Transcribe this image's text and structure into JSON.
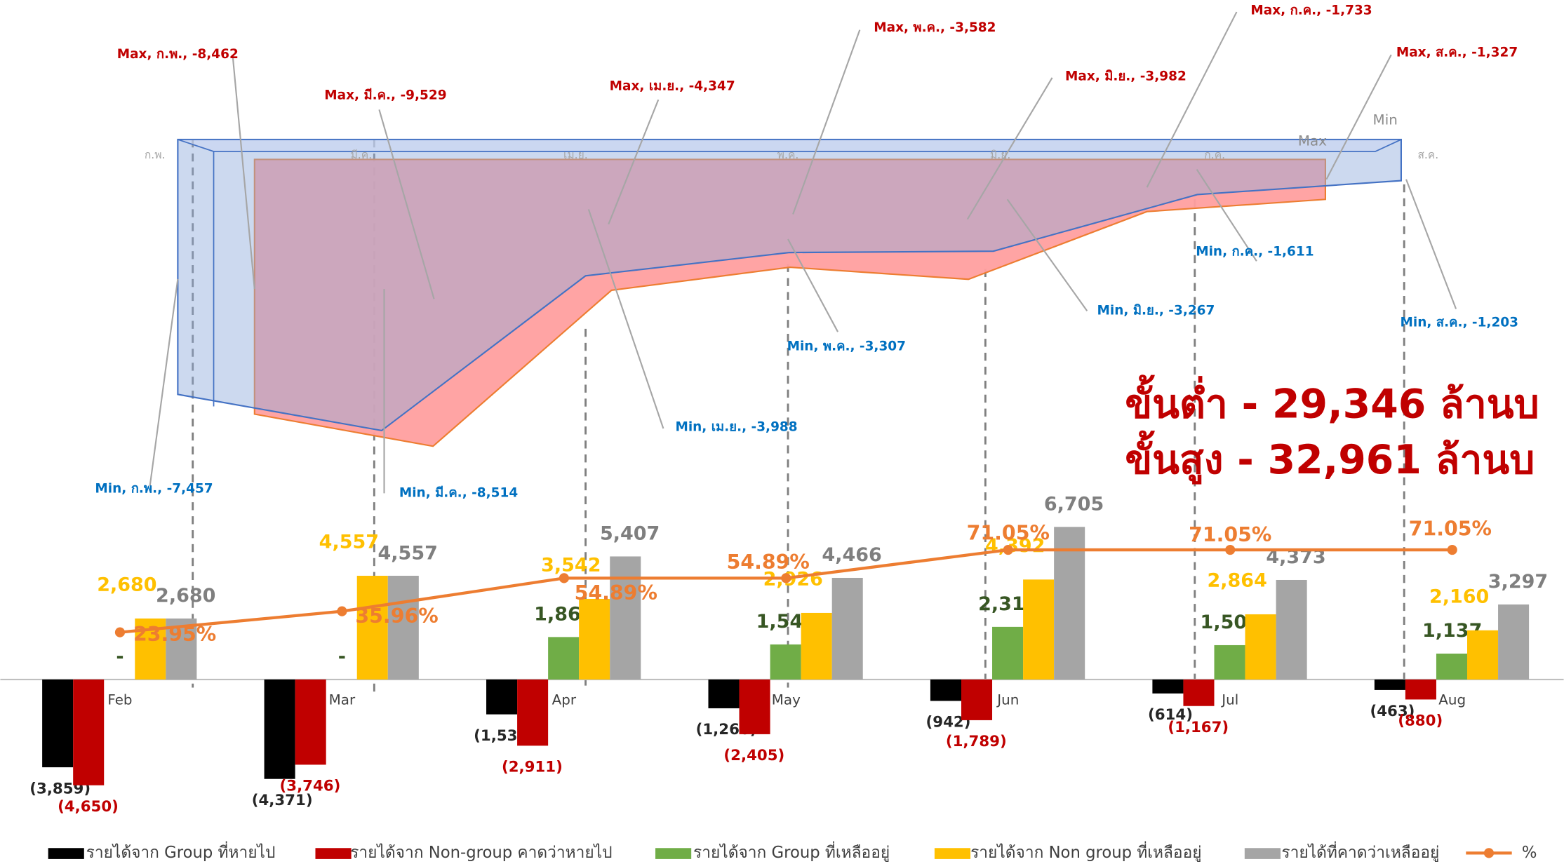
{
  "chart_data": [
    {
      "type": "area",
      "categories": [
        "ก.พ.",
        "มี.ค.",
        "เม.ย.",
        "พ.ค.",
        "มิ.ย.",
        "ก.ค.",
        "ส.ค."
      ],
      "ylim": [
        -10000,
        0
      ],
      "series": [
        {
          "name": "Max",
          "color": "#ff9f9f",
          "label_color": "#c00000",
          "values": [
            -8462,
            -9529,
            -4347,
            -3582,
            -3982,
            -1733,
            -1327
          ],
          "value_labels": [
            "Max, ก.พ., -8,462",
            "Max, มี.ค., -9,529",
            "Max, เม.ย., -4,347",
            "Max, พ.ค., -3,582",
            "Max, มิ.ย., -3,982",
            "Max, ก.ค., -1,733",
            "Max, ส.ค., -1,327"
          ]
        },
        {
          "name": "Min",
          "color": "#8faadc",
          "label_color": "#0070c0",
          "values": [
            -7457,
            -8514,
            -3988,
            -3307,
            -3267,
            -1611,
            -1203
          ],
          "value_labels": [
            "Min, ก.พ., -7,457",
            "Min, มี.ค., -8,514",
            "Min, เม.ย., -3,988",
            "Min, พ.ค., -3,307",
            "Min, มิ.ย., -3,267",
            "Min, ก.ค., -1,611",
            "Min, ส.ค., -1,203"
          ]
        }
      ],
      "annotations": [
        "ขั้นต่ำ - 29,346 ล้านบ",
        "ขั้นสูง - 32,961 ล้านบ"
      ]
    },
    {
      "type": "bar",
      "categories": [
        "Feb",
        "Mar",
        "Apr",
        "May",
        "Jun",
        "Jul",
        "Aug"
      ],
      "ylim": [
        -5000,
        7000
      ],
      "y2lim": [
        -68,
        88
      ],
      "series": [
        {
          "name": "รายได้จาก Group ที่หายไป",
          "color": "#000000",
          "values": [
            -3859,
            -4371,
            -1533,
            -1266,
            -942,
            -614,
            -463
          ],
          "value_labels": [
            "(3,859)",
            "(4,371)",
            "(1,533)",
            "(1,266)",
            "(942)",
            "(614)",
            "(463)"
          ]
        },
        {
          "name": "รายได้จาก Non-group คาดว่าหายไป",
          "color": "#c00000",
          "values": [
            -4650,
            -3746,
            -2911,
            -2405,
            -1789,
            -1167,
            -880
          ],
          "value_labels": [
            "(4,650)",
            "(3,746)",
            "(2,911)",
            "(2,405)",
            "(1,789)",
            "(1,167)",
            "(880)"
          ]
        },
        {
          "name": "รายได้จาก Group ที่เหลืออยู่",
          "color": "#70ad47",
          "values": [
            0,
            0,
            1865,
            1540,
            2312,
            1508,
            1137
          ],
          "value_labels": [
            "-",
            "-",
            "1,865",
            "1,540",
            "2,312",
            "1,508",
            "1,137"
          ]
        },
        {
          "name": "รายได้จาก Non group ที่เหลืออยู่",
          "color": "#ffc000",
          "values": [
            2680,
            4557,
            3542,
            2926,
            4392,
            2864,
            2160
          ],
          "value_labels": [
            "2,680",
            "4,557",
            "3,542",
            "2,926",
            "4,392",
            "2,864",
            "2,160"
          ]
        },
        {
          "name": "รายได้ที่คาดว่าเหลืออยู่",
          "color": "#a5a5a5",
          "values": [
            2680,
            4557,
            5407,
            4466,
            6705,
            4373,
            3297
          ],
          "value_labels": [
            "2,680",
            "4,557",
            "5,407",
            "4,466",
            "6,705",
            "4,373",
            "3,297"
          ]
        },
        {
          "name": "%",
          "type": "line",
          "axis": "y2",
          "color": "#ed7d31",
          "values": [
            23.95,
            35.96,
            54.89,
            54.89,
            71.05,
            71.05,
            71.05
          ],
          "value_labels": [
            "23.95%",
            "35.96%",
            "54.89%",
            "54.89%",
            "71.05%",
            "71.05%",
            "71.05%"
          ]
        }
      ]
    }
  ]
}
